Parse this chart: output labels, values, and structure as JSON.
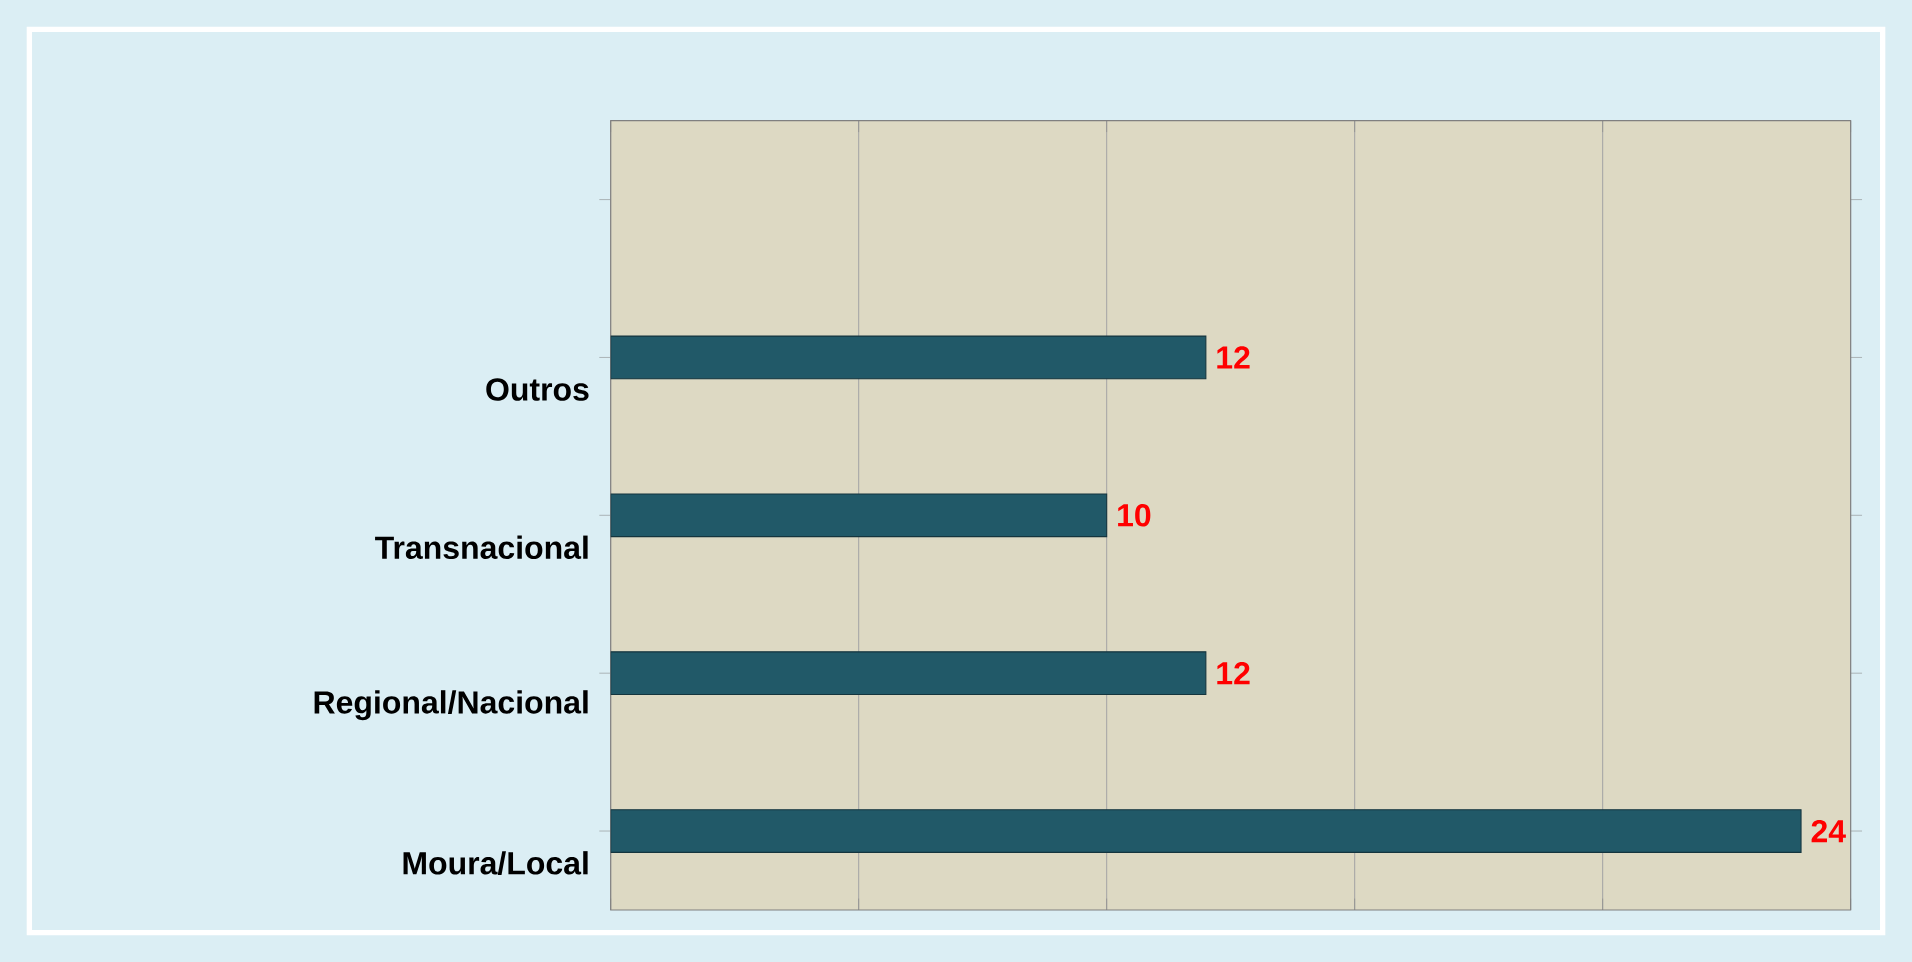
{
  "chart_data": {
    "type": "bar",
    "orientation": "horizontal",
    "categories": [
      null,
      "Outros",
      "Transnacional",
      "Regional/Nacional",
      "Moura/Local"
    ],
    "values": [
      null,
      12,
      10,
      12,
      24
    ],
    "color": "#215968",
    "data_labels": true,
    "xlim": [
      0,
      25
    ],
    "xticks": [
      {
        "value": 0,
        "label": null
      },
      {
        "value": 5,
        "label": null
      },
      {
        "value": 10,
        "label": null
      },
      {
        "value": 15,
        "label": null
      },
      {
        "value": 20,
        "label": null
      },
      {
        "value": 25,
        "label": null
      }
    ],
    "grid": "x",
    "tick_labels": "y"
  }
}
